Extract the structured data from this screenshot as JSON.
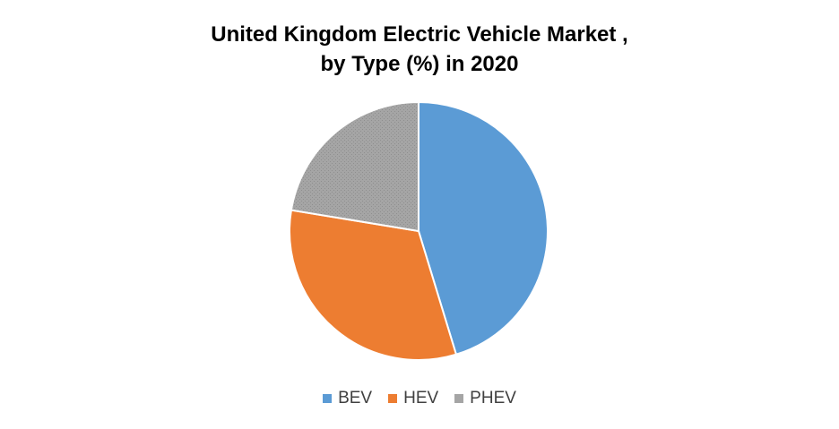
{
  "chart_data": {
    "type": "pie",
    "title_lines": [
      "United Kingdom Electric Vehicle Market ,",
      "by Type  (%) in 2020"
    ],
    "categories": [
      "BEV",
      "HEV",
      "PHEV"
    ],
    "values": [
      45.3,
      32.3,
      22.4
    ],
    "colors": [
      "#5B9BD5",
      "#ED7D31",
      "#A5A5A5"
    ],
    "legend_position": "bottom"
  }
}
